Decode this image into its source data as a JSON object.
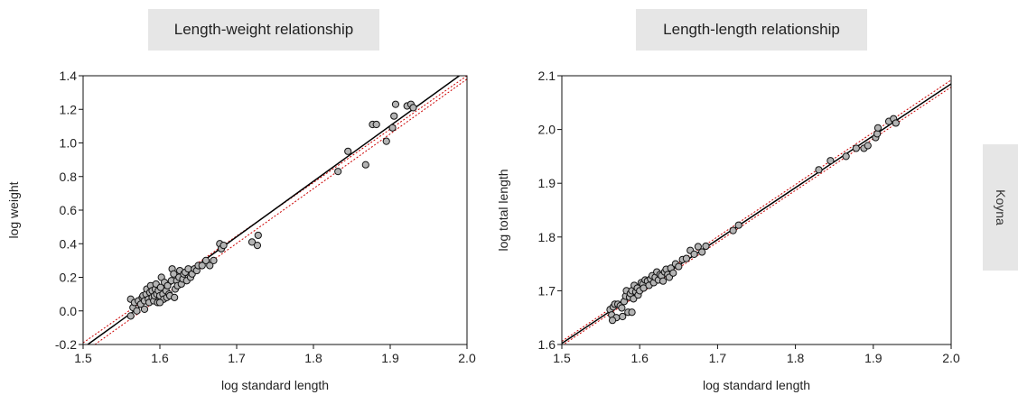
{
  "panel_label": "Koyna",
  "chart_data": [
    {
      "type": "scatter",
      "title": "Length-weight relationship",
      "xlabel": "log standard length",
      "ylabel": "log weight",
      "xlim": [
        1.5,
        2.0
      ],
      "ylim": [
        -0.2,
        1.4
      ],
      "xticks": [
        1.5,
        1.6,
        1.7,
        1.8,
        1.9,
        2.0
      ],
      "xtick_labels": [
        "1.5",
        "1.6",
        "1.7",
        "1.8",
        "1.9",
        "2.0"
      ],
      "yticks": [
        -0.2,
        0.0,
        0.2,
        0.4,
        0.6,
        0.8,
        1.0,
        1.2,
        1.4
      ],
      "ytick_labels": [
        "-0.2",
        "0.0",
        "0.2",
        "0.4",
        "0.6",
        "0.8",
        "1.0",
        "1.2",
        "1.4"
      ],
      "grid": false,
      "regression_line": {
        "color": "#000000",
        "x": [
          1.5,
          1.99
        ],
        "y": [
          -0.22,
          1.4
        ]
      },
      "confidence_bands": {
        "color": "#cc0000",
        "upper": {
          "x": [
            1.5,
            2.0
          ],
          "y": [
            -0.19,
            1.4
          ]
        },
        "lower": {
          "x": [
            1.5,
            2.0
          ],
          "y": [
            -0.25,
            1.38
          ]
        }
      },
      "points": {
        "x": [
          1.562,
          1.565,
          1.567,
          1.57,
          1.572,
          1.575,
          1.577,
          1.578,
          1.58,
          1.582,
          1.583,
          1.585,
          1.586,
          1.587,
          1.588,
          1.59,
          1.59,
          1.592,
          1.593,
          1.594,
          1.595,
          1.596,
          1.597,
          1.598,
          1.6,
          1.601,
          1.602,
          1.604,
          1.605,
          1.606,
          1.608,
          1.609,
          1.61,
          1.612,
          1.613,
          1.615,
          1.616,
          1.618,
          1.619,
          1.62,
          1.622,
          1.623,
          1.625,
          1.626,
          1.628,
          1.63,
          1.631,
          1.633,
          1.635,
          1.637,
          1.64,
          1.642,
          1.645,
          1.648,
          1.65,
          1.655,
          1.66,
          1.665,
          1.67,
          1.678,
          1.68,
          1.683,
          1.72,
          1.727,
          1.728,
          1.832,
          1.845,
          1.868,
          1.877,
          1.882,
          1.895,
          1.903,
          1.905,
          1.907,
          1.922,
          1.927,
          1.93,
          1.562,
          1.58,
          1.6
        ],
        "y": [
          0.07,
          0.02,
          0.05,
          0.0,
          0.06,
          0.04,
          0.08,
          0.09,
          0.06,
          0.1,
          0.13,
          0.07,
          0.05,
          0.11,
          0.15,
          0.08,
          0.12,
          0.06,
          0.09,
          0.13,
          0.16,
          0.1,
          0.05,
          0.12,
          0.09,
          0.14,
          0.2,
          0.1,
          0.07,
          0.17,
          0.12,
          0.08,
          0.15,
          0.1,
          0.09,
          0.18,
          0.25,
          0.22,
          0.08,
          0.13,
          0.18,
          0.15,
          0.2,
          0.24,
          0.16,
          0.19,
          0.22,
          0.23,
          0.18,
          0.25,
          0.2,
          0.22,
          0.25,
          0.24,
          0.27,
          0.27,
          0.3,
          0.27,
          0.3,
          0.4,
          0.37,
          0.39,
          0.41,
          0.39,
          0.45,
          0.83,
          0.95,
          0.87,
          1.11,
          1.11,
          1.01,
          1.09,
          1.16,
          1.23,
          1.22,
          1.23,
          1.21,
          -0.03,
          0.01,
          0.05
        ]
      }
    },
    {
      "type": "scatter",
      "title": "Length-length relationship",
      "xlabel": "log standard length",
      "ylabel": "log total length",
      "xlim": [
        1.5,
        2.0
      ],
      "ylim": [
        1.6,
        2.1
      ],
      "xticks": [
        1.5,
        1.6,
        1.7,
        1.8,
        1.9,
        2.0
      ],
      "xtick_labels": [
        "1.5",
        "1.6",
        "1.7",
        "1.8",
        "1.9",
        "2.0"
      ],
      "yticks": [
        1.6,
        1.7,
        1.8,
        1.9,
        2.0,
        2.1
      ],
      "ytick_labels": [
        "1.6",
        "1.7",
        "1.8",
        "1.9",
        "2.0",
        "2.1"
      ],
      "grid": false,
      "regression_line": {
        "color": "#000000",
        "x": [
          1.5,
          2.0
        ],
        "y": [
          1.602,
          2.085
        ]
      },
      "confidence_bands": {
        "color": "#cc0000",
        "upper": {
          "x": [
            1.5,
            2.0
          ],
          "y": [
            1.606,
            2.092
          ]
        },
        "lower": {
          "x": [
            1.5,
            2.0
          ],
          "y": [
            1.598,
            2.079
          ]
        }
      },
      "points": {
        "x": [
          1.562,
          1.564,
          1.566,
          1.568,
          1.57,
          1.572,
          1.575,
          1.577,
          1.58,
          1.582,
          1.583,
          1.585,
          1.587,
          1.588,
          1.59,
          1.592,
          1.593,
          1.595,
          1.597,
          1.598,
          1.6,
          1.602,
          1.604,
          1.605,
          1.607,
          1.61,
          1.612,
          1.614,
          1.616,
          1.618,
          1.62,
          1.622,
          1.624,
          1.626,
          1.628,
          1.63,
          1.632,
          1.634,
          1.636,
          1.638,
          1.64,
          1.643,
          1.646,
          1.65,
          1.655,
          1.66,
          1.665,
          1.67,
          1.675,
          1.68,
          1.685,
          1.72,
          1.727,
          1.83,
          1.845,
          1.865,
          1.878,
          1.888,
          1.893,
          1.903,
          1.905,
          1.906,
          1.92,
          1.926,
          1.929,
          1.565,
          1.578,
          1.59
        ],
        "y": [
          1.665,
          1.655,
          1.67,
          1.675,
          1.65,
          1.675,
          1.672,
          1.668,
          1.68,
          1.69,
          1.7,
          1.66,
          1.688,
          1.695,
          1.7,
          1.685,
          1.71,
          1.698,
          1.705,
          1.692,
          1.7,
          1.715,
          1.712,
          1.705,
          1.72,
          1.718,
          1.71,
          1.722,
          1.728,
          1.715,
          1.725,
          1.735,
          1.72,
          1.73,
          1.728,
          1.718,
          1.735,
          1.74,
          1.73,
          1.725,
          1.742,
          1.733,
          1.75,
          1.745,
          1.758,
          1.76,
          1.775,
          1.768,
          1.782,
          1.772,
          1.783,
          1.812,
          1.822,
          1.925,
          1.942,
          1.95,
          1.965,
          1.965,
          1.97,
          1.985,
          1.992,
          2.003,
          2.015,
          2.02,
          2.012,
          1.645,
          1.652,
          1.66
        ]
      }
    }
  ]
}
